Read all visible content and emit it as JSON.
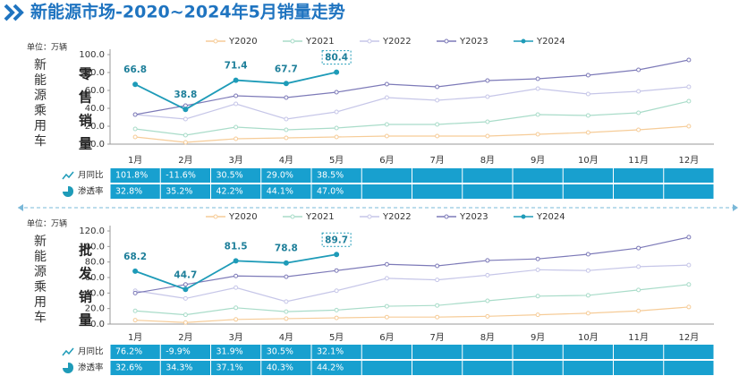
{
  "title": "新能源市场-2020~2024年5月销量走势",
  "chart_data": [
    {
      "type": "line",
      "unit": "单位：万辆",
      "side_label": "新能源乘用车",
      "metric_label": "零售销量",
      "categories": [
        "1月",
        "2月",
        "3月",
        "4月",
        "5月",
        "6月",
        "7月",
        "8月",
        "9月",
        "10月",
        "11月",
        "12月"
      ],
      "ylim": [
        0,
        100
      ],
      "yticks": [
        {
          "value": 0,
          "label": "0.0"
        },
        {
          "value": 20,
          "label": "20.0"
        },
        {
          "value": 40,
          "label": "40.0"
        },
        {
          "value": 60,
          "label": "60.0"
        },
        {
          "value": 80,
          "label": "80.0"
        },
        {
          "value": 100,
          "label": "100.0"
        }
      ],
      "grid": false,
      "series": [
        {
          "name": "Y2020",
          "color": "#f6cc98",
          "values": [
            8,
            2,
            6,
            7,
            8,
            9,
            9,
            9,
            11,
            13,
            16,
            20
          ]
        },
        {
          "name": "Y2021",
          "color": "#a9dcc9",
          "values": [
            17,
            10,
            19,
            16,
            18,
            22,
            22,
            25,
            33,
            32,
            35,
            48
          ]
        },
        {
          "name": "Y2022",
          "color": "#c6c6e8",
          "values": [
            33,
            28,
            45,
            28,
            36,
            52,
            49,
            53,
            62,
            56,
            59,
            64
          ]
        },
        {
          "name": "Y2023",
          "color": "#7d7ab8",
          "values": [
            33,
            43,
            54,
            52,
            58,
            67,
            64,
            71,
            73,
            77,
            83,
            94
          ]
        },
        {
          "name": "Y2024",
          "color": "#1e9bb8",
          "values": [
            66.8,
            38.8,
            71.4,
            67.7,
            80.4,
            null,
            null,
            null,
            null,
            null,
            null,
            null
          ]
        }
      ],
      "table": [
        {
          "name": "月同比",
          "values": [
            "101.8%",
            "-11.6%",
            "30.5%",
            "29.0%",
            "38.5%"
          ]
        },
        {
          "name": "渗透率",
          "values": [
            "32.8%",
            "35.2%",
            "42.2%",
            "44.1%",
            "47.0%"
          ]
        }
      ]
    },
    {
      "type": "line",
      "unit": "单位：万辆",
      "side_label": "新能源乘用车",
      "metric_label": "批发销量",
      "categories": [
        "1月",
        "2月",
        "3月",
        "4月",
        "5月",
        "6月",
        "7月",
        "8月",
        "9月",
        "10月",
        "11月",
        "12月"
      ],
      "ylim": [
        0,
        120
      ],
      "yticks": [
        {
          "value": 0,
          "label": "0.0"
        },
        {
          "value": 20,
          "label": "20.0"
        },
        {
          "value": 40,
          "label": "40.0"
        },
        {
          "value": 60,
          "label": "60.0"
        },
        {
          "value": 80,
          "label": "80.0"
        },
        {
          "value": 100,
          "label": "100.0"
        },
        {
          "value": 120,
          "label": "120.0"
        }
      ],
      "grid": false,
      "series": [
        {
          "name": "Y2020",
          "color": "#f6cc98",
          "values": [
            5,
            2,
            6,
            7,
            8,
            9,
            9,
            10,
            12,
            14,
            17,
            22
          ]
        },
        {
          "name": "Y2021",
          "color": "#a9dcc9",
          "values": [
            17,
            12,
            21,
            16,
            18,
            23,
            24,
            30,
            36,
            37,
            44,
            51
          ]
        },
        {
          "name": "Y2022",
          "color": "#c6c6e8",
          "values": [
            43,
            33,
            47,
            29,
            43,
            59,
            57,
            63,
            70,
            69,
            74,
            76
          ]
        },
        {
          "name": "Y2023",
          "color": "#7d7ab8",
          "values": [
            40,
            51,
            62,
            61,
            69,
            77,
            75,
            82,
            84,
            90,
            98,
            112
          ]
        },
        {
          "name": "Y2024",
          "color": "#1e9bb8",
          "values": [
            68.2,
            44.7,
            81.5,
            78.8,
            89.7,
            null,
            null,
            null,
            null,
            null,
            null,
            null
          ]
        }
      ],
      "table": [
        {
          "name": "月同比",
          "values": [
            "76.2%",
            "-9.9%",
            "31.9%",
            "30.5%",
            "32.1%"
          ]
        },
        {
          "name": "渗透率",
          "values": [
            "32.6%",
            "34.3%",
            "37.1%",
            "40.3%",
            "44.2%"
          ]
        }
      ]
    }
  ]
}
